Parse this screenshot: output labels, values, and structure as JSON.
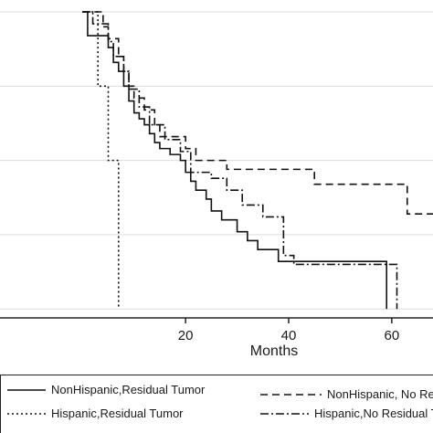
{
  "chart_data": {
    "type": "line",
    "title": "",
    "xlabel": "Months",
    "ylabel": "",
    "xlim": [
      -16,
      68
    ],
    "ylim": [
      -0.03,
      1.04
    ],
    "x_ticks": [
      20,
      40,
      60
    ],
    "y_gridlines": [
      0,
      0.25,
      0.5,
      0.75,
      1.0
    ],
    "grid": true,
    "legend_position": "bottom",
    "colors": {
      "line": "#111111",
      "grid": "#dcdcdc",
      "axis": "#222222",
      "background": "#ffffff"
    },
    "series": [
      {
        "name": "NonHispanic,Residual Tumor",
        "style": "solid",
        "steps": [
          [
            0,
            1.0
          ],
          [
            1,
            0.92
          ],
          [
            5,
            0.88
          ],
          [
            6,
            0.83
          ],
          [
            7,
            0.8
          ],
          [
            8,
            0.75
          ],
          [
            9,
            0.7
          ],
          [
            10,
            0.66
          ],
          [
            11,
            0.64
          ],
          [
            12,
            0.62
          ],
          [
            13,
            0.59
          ],
          [
            14,
            0.56
          ],
          [
            15,
            0.54
          ],
          [
            17,
            0.52
          ],
          [
            19,
            0.5
          ],
          [
            20,
            0.46
          ],
          [
            21,
            0.43
          ],
          [
            22,
            0.4
          ],
          [
            24,
            0.37
          ],
          [
            25,
            0.33
          ],
          [
            27,
            0.3
          ],
          [
            30,
            0.26
          ],
          [
            32,
            0.23
          ],
          [
            34,
            0.2
          ],
          [
            36,
            0.2
          ],
          [
            38,
            0.16
          ],
          [
            41,
            0.16
          ],
          [
            59,
            0.0
          ]
        ],
        "end_x": 59
      },
      {
        "name": "NonHispanic, No Residual Tumor",
        "style": "dashed",
        "steps": [
          [
            0,
            1.0
          ],
          [
            4,
            0.95
          ],
          [
            5,
            0.91
          ],
          [
            7,
            0.85
          ],
          [
            8,
            0.8
          ],
          [
            9,
            0.75
          ],
          [
            10,
            0.71
          ],
          [
            12,
            0.67
          ],
          [
            14,
            0.62
          ],
          [
            15,
            0.58
          ],
          [
            20,
            0.54
          ],
          [
            22,
            0.5
          ],
          [
            28,
            0.47
          ],
          [
            45,
            0.42
          ],
          [
            51,
            0.42
          ],
          [
            63,
            0.32
          ]
        ],
        "end_x": 68
      },
      {
        "name": "Hispanic,Residual Tumor",
        "style": "dotted",
        "steps": [
          [
            0,
            1.0
          ],
          [
            3,
            0.75
          ],
          [
            5,
            0.5
          ],
          [
            7,
            0.0
          ]
        ],
        "end_x": 7
      },
      {
        "name": "Hispanic,No Residual Tumor",
        "style": "dashdot",
        "steps": [
          [
            0,
            1.0
          ],
          [
            2,
            0.96
          ],
          [
            5,
            0.9
          ],
          [
            6,
            0.85
          ],
          [
            8,
            0.8
          ],
          [
            9,
            0.74
          ],
          [
            11,
            0.68
          ],
          [
            13,
            0.62
          ],
          [
            16,
            0.57
          ],
          [
            19,
            0.53
          ],
          [
            21,
            0.46
          ],
          [
            25,
            0.44
          ],
          [
            28,
            0.4
          ],
          [
            31,
            0.35
          ],
          [
            35,
            0.31
          ],
          [
            39,
            0.18
          ],
          [
            41,
            0.15
          ],
          [
            61,
            0.0
          ]
        ],
        "end_x": 61
      }
    ]
  }
}
